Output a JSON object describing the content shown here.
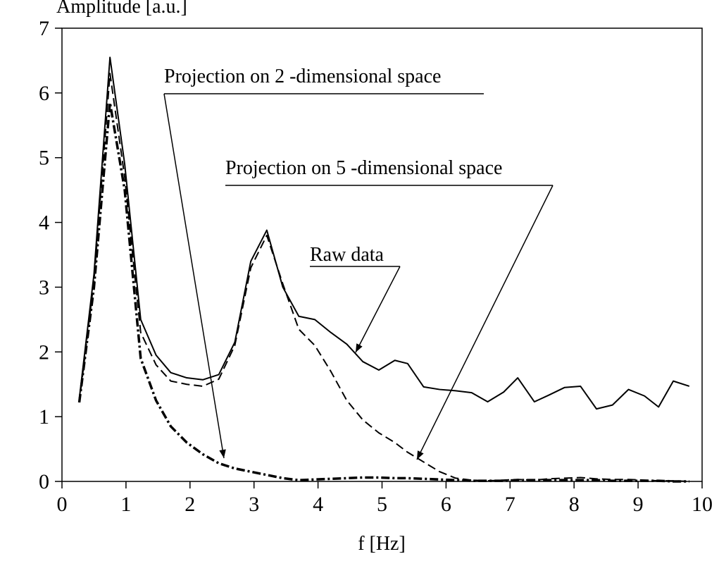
{
  "chart_data": {
    "type": "line",
    "xlabel": "f [Hz]",
    "ylabel": "Amplitude [a.u.]",
    "x": [
      0.27,
      0.5,
      0.75,
      0.98,
      1.23,
      1.47,
      1.7,
      1.95,
      2.2,
      2.45,
      2.7,
      2.95,
      3.2,
      3.45,
      3.7,
      3.95,
      4.2,
      4.45,
      4.7,
      4.95,
      5.2,
      5.4,
      5.65,
      5.9,
      6.15,
      6.4,
      6.65,
      6.9,
      7.12,
      7.38,
      7.6,
      7.85,
      8.1,
      8.35,
      8.6,
      8.85,
      9.1,
      9.32,
      9.55,
      9.8
    ],
    "series": [
      {
        "name": "Raw data",
        "color": "#000000",
        "dash": "solid",
        "values": [
          1.27,
          3.2,
          6.55,
          4.9,
          2.5,
          1.95,
          1.68,
          1.6,
          1.57,
          1.65,
          2.15,
          3.4,
          3.88,
          3.0,
          2.55,
          2.5,
          2.3,
          2.12,
          1.85,
          1.72,
          1.87,
          1.82,
          1.46,
          1.42,
          1.4,
          1.37,
          1.23,
          1.38,
          1.6,
          1.23,
          1.33,
          1.45,
          1.47,
          1.12,
          1.18,
          1.42,
          1.32,
          1.15,
          1.55,
          1.47
        ]
      },
      {
        "name": "Projection on 5 -dimensional space",
        "color": "#000000",
        "dash": "dashed",
        "values": [
          1.22,
          3.1,
          6.3,
          4.7,
          2.3,
          1.8,
          1.55,
          1.5,
          1.47,
          1.58,
          2.1,
          3.3,
          3.8,
          3.05,
          2.35,
          2.1,
          1.7,
          1.25,
          0.95,
          0.75,
          0.6,
          0.45,
          0.3,
          0.15,
          0.05,
          0.02,
          0.01,
          0.02,
          0.03,
          0.02,
          0.04,
          0.05,
          0.06,
          0.04,
          0.03,
          0.03,
          0.02,
          0.01,
          0.01,
          0.0
        ]
      },
      {
        "name": "Projection on 2 -dimensional space",
        "color": "#000000",
        "dash": "dashdot",
        "values": [
          1.22,
          3.0,
          5.85,
          4.5,
          1.9,
          1.25,
          0.85,
          0.6,
          0.42,
          0.28,
          0.2,
          0.15,
          0.1,
          0.05,
          0.02,
          0.03,
          0.04,
          0.05,
          0.06,
          0.06,
          0.05,
          0.05,
          0.04,
          0.03,
          0.02,
          0.01,
          0.01,
          0.01,
          0.02,
          0.02,
          0.02,
          0.02,
          0.02,
          0.02,
          0.01,
          0.01,
          0.01,
          0.01,
          0.0,
          0.0
        ]
      }
    ],
    "xlim": [
      0,
      10
    ],
    "ylim": [
      0,
      7
    ],
    "xticks": [
      0,
      1,
      2,
      3,
      4,
      5,
      6,
      7,
      8,
      9,
      10
    ],
    "yticks": [
      0,
      1,
      2,
      3,
      4,
      5,
      6,
      7
    ]
  }
}
